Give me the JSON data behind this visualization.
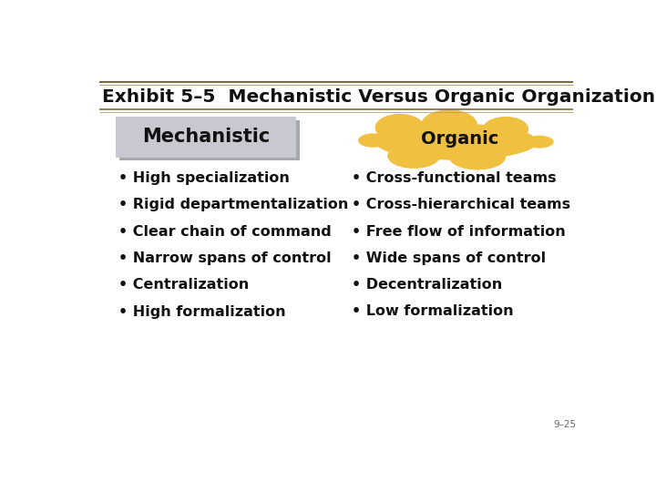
{
  "title": "Exhibit 5–5  Mechanistic Versus Organic Organization",
  "title_fontsize": 14.5,
  "background_color": "#ffffff",
  "mechanistic_label": "Mechanistic",
  "organic_label": "Organic",
  "mechanistic_box_color": "#c8c8d0",
  "mechanistic_shadow_color": "#a8a8b0",
  "organic_blob_color": "#f0c040",
  "left_items": [
    "High specialization",
    "Rigid departmentalization",
    "Clear chain of command",
    "Narrow spans of control",
    "Centralization",
    "High formalization"
  ],
  "right_items": [
    "Cross-functional teams",
    "Cross-hierarchical teams",
    "Free flow of information",
    "Wide spans of control",
    "Decentralization",
    "Low formalization"
  ],
  "bullet": "•",
  "item_fontsize": 11.5,
  "header_fontsize": 15,
  "footer_text": "9–25",
  "line_color_dark": "#7b6a3e",
  "line_color_light": "#b0a070",
  "title_color": "#111111",
  "item_color": "#111111"
}
